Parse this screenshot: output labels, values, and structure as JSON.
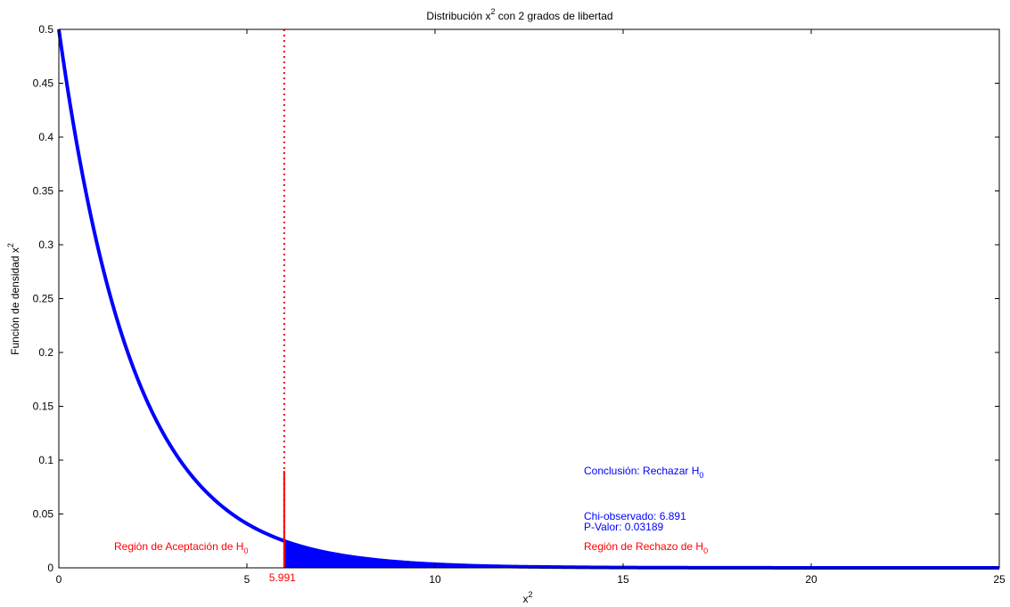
{
  "chart_data": {
    "type": "line",
    "title_main": "Distribución x",
    "title_sup": "2",
    "title_rest": " con 2 grados de libertad",
    "xlabel_main": "x",
    "xlabel_sup": "2",
    "ylabel_main": "Función de densidad x",
    "ylabel_sup": "2",
    "xlim": [
      0,
      25
    ],
    "ylim": [
      0,
      0.5
    ],
    "xticks": [
      0,
      5,
      10,
      15,
      20,
      25
    ],
    "xtick_labels": [
      "0",
      "5",
      "10",
      "15",
      "20",
      "25"
    ],
    "yticks": [
      0,
      0.05,
      0.1,
      0.15,
      0.2,
      0.25,
      0.3,
      0.35,
      0.4,
      0.45,
      0.5
    ],
    "ytick_labels": [
      "0",
      "0.05",
      "0.1",
      "0.15",
      "0.2",
      "0.25",
      "0.3",
      "0.35",
      "0.4",
      "0.45",
      "0.5"
    ],
    "grid": false,
    "series": [
      {
        "color": "#0000ff",
        "x": [
          0,
          0.5,
          1,
          1.5,
          2,
          2.5,
          3,
          3.5,
          4,
          4.5,
          5,
          5.5,
          5.991,
          6.5,
          7,
          7.5,
          8,
          9,
          10,
          11,
          12,
          13,
          14,
          15,
          16,
          18,
          20,
          22,
          25
        ],
        "y": [
          0.5,
          0.3894,
          0.3033,
          0.2362,
          0.1839,
          0.1433,
          0.1116,
          0.0869,
          0.0677,
          0.0527,
          0.041,
          0.032,
          0.025,
          0.0194,
          0.0151,
          0.0118,
          0.0092,
          0.0056,
          0.0034,
          0.002,
          0.0012,
          0.0008,
          0.0005,
          0.0003,
          0.0002,
          0.0001,
          0.0,
          0.0,
          0.0
        ]
      }
    ],
    "critical_value": 5.991,
    "critical_label": "5.991",
    "critical_color": "#ff0000",
    "fill_color": "#0000ff",
    "annotations": {
      "acceptance_main": "Región de Aceptación de H",
      "acceptance_sub": "0",
      "rejection_main": "Región de Rechazo de H",
      "rejection_sub": "0",
      "conclusion_main": "Conclusión: Rechazar H",
      "conclusion_sub": "0",
      "chi_observed": "Chi-observado: 6.891",
      "p_value": "P-Valor: 0.03189"
    }
  }
}
